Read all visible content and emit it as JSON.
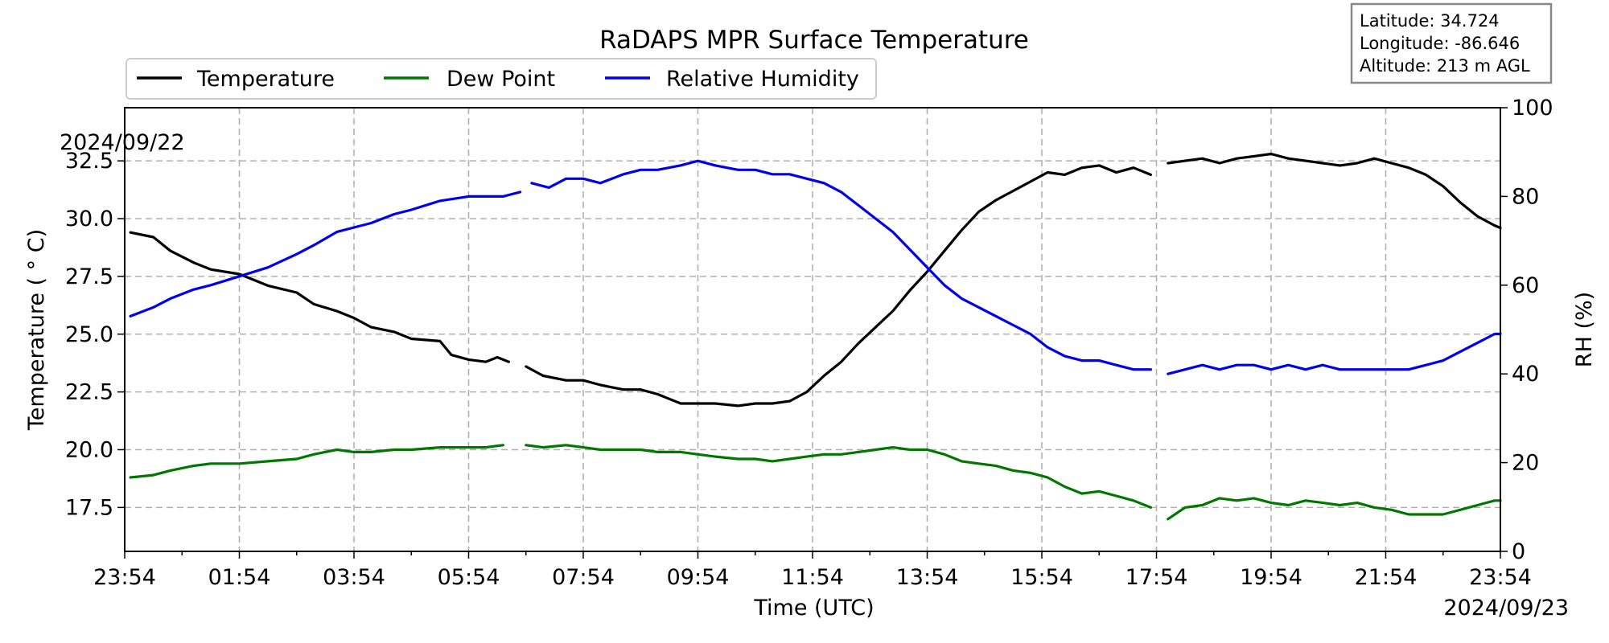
{
  "chart_data": {
    "type": "line",
    "title": "RaDAPS MPR Surface Temperature",
    "xlabel": "Time (UTC)",
    "ylabel_left": "Temperature ( ° C)",
    "ylabel_right": "RH (%)",
    "x_start_label": "2024/09/22",
    "x_end_label": "2024/09/23",
    "x_ticks": [
      "23:54",
      "01:54",
      "03:54",
      "05:54",
      "07:54",
      "09:54",
      "11:54",
      "13:54",
      "15:54",
      "17:54",
      "19:54",
      "21:54",
      "23:54"
    ],
    "y_left_ticks": [
      "17.5",
      "20.0",
      "22.5",
      "25.0",
      "27.5",
      "30.0",
      "32.5"
    ],
    "y_right_ticks": [
      "0",
      "20",
      "40",
      "60",
      "80",
      "100"
    ],
    "ylim_left": [
      15.6,
      34.8
    ],
    "ylim_right": [
      0,
      100
    ],
    "xlim_hours": [
      0,
      24
    ],
    "grid": true,
    "legend_position": "top-left",
    "info_box": [
      "Latitude: 34.724",
      "Longitude: -86.646",
      "Altitude: 213 m AGL"
    ],
    "series": [
      {
        "name": "Temperature",
        "color": "#000000",
        "axis": "left",
        "points": [
          [
            0.1,
            29.4
          ],
          [
            0.5,
            29.2
          ],
          [
            0.8,
            28.6
          ],
          [
            1.2,
            28.1
          ],
          [
            1.5,
            27.8
          ],
          [
            2.0,
            27.6
          ],
          [
            2.5,
            27.1
          ],
          [
            3.0,
            26.8
          ],
          [
            3.3,
            26.3
          ],
          [
            3.7,
            26.0
          ],
          [
            4.0,
            25.7
          ],
          [
            4.3,
            25.3
          ],
          [
            4.7,
            25.1
          ],
          [
            5.0,
            24.8
          ],
          [
            5.5,
            24.7
          ],
          [
            5.7,
            24.1
          ],
          [
            6.0,
            23.9
          ],
          [
            6.3,
            23.8
          ],
          [
            6.5,
            24.0
          ],
          [
            6.7,
            23.8
          ],
          null,
          [
            7.0,
            23.6
          ],
          [
            7.3,
            23.2
          ],
          [
            7.7,
            23.0
          ],
          [
            8.0,
            23.0
          ],
          [
            8.3,
            22.8
          ],
          [
            8.7,
            22.6
          ],
          [
            9.0,
            22.6
          ],
          [
            9.3,
            22.4
          ],
          [
            9.5,
            22.2
          ],
          [
            9.7,
            22.0
          ],
          [
            10.0,
            22.0
          ],
          [
            10.3,
            22.0
          ],
          [
            10.7,
            21.9
          ],
          [
            11.0,
            22.0
          ],
          [
            11.3,
            22.0
          ],
          [
            11.6,
            22.1
          ],
          [
            11.9,
            22.5
          ],
          [
            12.2,
            23.2
          ],
          [
            12.5,
            23.8
          ],
          [
            12.8,
            24.6
          ],
          [
            13.1,
            25.3
          ],
          [
            13.4,
            26.0
          ],
          [
            13.7,
            26.9
          ],
          [
            14.0,
            27.7
          ],
          [
            14.3,
            28.6
          ],
          [
            14.6,
            29.5
          ],
          [
            14.9,
            30.3
          ],
          [
            15.2,
            30.8
          ],
          [
            15.5,
            31.2
          ],
          [
            15.8,
            31.6
          ],
          [
            16.1,
            32.0
          ],
          [
            16.4,
            31.9
          ],
          [
            16.7,
            32.2
          ],
          [
            17.0,
            32.3
          ],
          [
            17.3,
            32.0
          ],
          [
            17.6,
            32.2
          ],
          [
            17.9,
            31.9
          ],
          null,
          [
            18.2,
            32.4
          ],
          [
            18.5,
            32.5
          ],
          [
            18.8,
            32.6
          ],
          [
            19.1,
            32.4
          ],
          [
            19.4,
            32.6
          ],
          [
            19.7,
            32.7
          ],
          [
            20.0,
            32.8
          ],
          [
            20.3,
            32.6
          ],
          [
            20.6,
            32.5
          ],
          [
            20.9,
            32.4
          ],
          [
            21.2,
            32.3
          ],
          [
            21.5,
            32.4
          ],
          [
            21.8,
            32.6
          ],
          [
            22.1,
            32.4
          ],
          [
            22.4,
            32.2
          ],
          [
            22.7,
            31.9
          ],
          [
            23.0,
            31.4
          ],
          [
            23.3,
            30.7
          ],
          [
            23.6,
            30.1
          ],
          [
            23.9,
            29.7
          ],
          [
            24.0,
            29.6
          ]
        ]
      },
      {
        "name": "Dew Point",
        "color": "#007700",
        "axis": "left",
        "points": [
          [
            0.1,
            18.8
          ],
          [
            0.5,
            18.9
          ],
          [
            0.8,
            19.1
          ],
          [
            1.2,
            19.3
          ],
          [
            1.5,
            19.4
          ],
          [
            2.0,
            19.4
          ],
          [
            2.5,
            19.5
          ],
          [
            3.0,
            19.6
          ],
          [
            3.3,
            19.8
          ],
          [
            3.7,
            20.0
          ],
          [
            4.0,
            19.9
          ],
          [
            4.3,
            19.9
          ],
          [
            4.7,
            20.0
          ],
          [
            5.0,
            20.0
          ],
          [
            5.5,
            20.1
          ],
          [
            6.0,
            20.1
          ],
          [
            6.3,
            20.1
          ],
          [
            6.6,
            20.2
          ],
          null,
          [
            7.0,
            20.2
          ],
          [
            7.3,
            20.1
          ],
          [
            7.7,
            20.2
          ],
          [
            8.0,
            20.1
          ],
          [
            8.3,
            20.0
          ],
          [
            8.7,
            20.0
          ],
          [
            9.0,
            20.0
          ],
          [
            9.3,
            19.9
          ],
          [
            9.7,
            19.9
          ],
          [
            10.0,
            19.8
          ],
          [
            10.3,
            19.7
          ],
          [
            10.7,
            19.6
          ],
          [
            11.0,
            19.6
          ],
          [
            11.3,
            19.5
          ],
          [
            11.6,
            19.6
          ],
          [
            11.9,
            19.7
          ],
          [
            12.2,
            19.8
          ],
          [
            12.5,
            19.8
          ],
          [
            12.8,
            19.9
          ],
          [
            13.1,
            20.0
          ],
          [
            13.4,
            20.1
          ],
          [
            13.7,
            20.0
          ],
          [
            14.0,
            20.0
          ],
          [
            14.3,
            19.8
          ],
          [
            14.6,
            19.5
          ],
          [
            14.9,
            19.4
          ],
          [
            15.2,
            19.3
          ],
          [
            15.5,
            19.1
          ],
          [
            15.8,
            19.0
          ],
          [
            16.1,
            18.8
          ],
          [
            16.4,
            18.4
          ],
          [
            16.7,
            18.1
          ],
          [
            17.0,
            18.2
          ],
          [
            17.3,
            18.0
          ],
          [
            17.6,
            17.8
          ],
          [
            17.9,
            17.5
          ],
          null,
          [
            18.2,
            17.0
          ],
          [
            18.5,
            17.5
          ],
          [
            18.8,
            17.6
          ],
          [
            19.1,
            17.9
          ],
          [
            19.4,
            17.8
          ],
          [
            19.7,
            17.9
          ],
          [
            20.0,
            17.7
          ],
          [
            20.3,
            17.6
          ],
          [
            20.6,
            17.8
          ],
          [
            20.9,
            17.7
          ],
          [
            21.2,
            17.6
          ],
          [
            21.5,
            17.7
          ],
          [
            21.8,
            17.5
          ],
          [
            22.1,
            17.4
          ],
          [
            22.4,
            17.2
          ],
          [
            22.7,
            17.2
          ],
          [
            23.0,
            17.2
          ],
          [
            23.3,
            17.4
          ],
          [
            23.6,
            17.6
          ],
          [
            23.9,
            17.8
          ],
          [
            24.0,
            17.8
          ]
        ]
      },
      {
        "name": "Relative Humidity",
        "color": "#0000ee",
        "axis": "right",
        "points": [
          [
            0.1,
            53
          ],
          [
            0.5,
            55
          ],
          [
            0.8,
            57
          ],
          [
            1.2,
            59
          ],
          [
            1.5,
            60
          ],
          [
            2.0,
            62
          ],
          [
            2.5,
            64
          ],
          [
            3.0,
            67
          ],
          [
            3.3,
            69
          ],
          [
            3.7,
            72
          ],
          [
            4.0,
            73
          ],
          [
            4.3,
            74
          ],
          [
            4.7,
            76
          ],
          [
            5.0,
            77
          ],
          [
            5.5,
            79
          ],
          [
            6.0,
            80
          ],
          [
            6.3,
            80
          ],
          [
            6.6,
            80
          ],
          [
            6.9,
            81
          ],
          null,
          [
            7.1,
            83
          ],
          [
            7.4,
            82
          ],
          [
            7.7,
            84
          ],
          [
            8.0,
            84
          ],
          [
            8.3,
            83
          ],
          [
            8.7,
            85
          ],
          [
            9.0,
            86
          ],
          [
            9.3,
            86
          ],
          [
            9.7,
            87
          ],
          [
            10.0,
            88
          ],
          [
            10.3,
            87
          ],
          [
            10.7,
            86
          ],
          [
            11.0,
            86
          ],
          [
            11.3,
            85
          ],
          [
            11.6,
            85
          ],
          [
            11.9,
            84
          ],
          [
            12.2,
            83
          ],
          [
            12.5,
            81
          ],
          [
            12.8,
            78
          ],
          [
            13.1,
            75
          ],
          [
            13.4,
            72
          ],
          [
            13.7,
            68
          ],
          [
            14.0,
            64
          ],
          [
            14.3,
            60
          ],
          [
            14.6,
            57
          ],
          [
            14.9,
            55
          ],
          [
            15.2,
            53
          ],
          [
            15.5,
            51
          ],
          [
            15.8,
            49
          ],
          [
            16.1,
            46
          ],
          [
            16.4,
            44
          ],
          [
            16.7,
            43
          ],
          [
            17.0,
            43
          ],
          [
            17.3,
            42
          ],
          [
            17.6,
            41
          ],
          [
            17.9,
            41
          ],
          null,
          [
            18.2,
            40
          ],
          [
            18.5,
            41
          ],
          [
            18.8,
            42
          ],
          [
            19.1,
            41
          ],
          [
            19.4,
            42
          ],
          [
            19.7,
            42
          ],
          [
            20.0,
            41
          ],
          [
            20.3,
            42
          ],
          [
            20.6,
            41
          ],
          [
            20.9,
            42
          ],
          [
            21.2,
            41
          ],
          [
            21.5,
            41
          ],
          [
            21.8,
            41
          ],
          [
            22.1,
            41
          ],
          [
            22.4,
            41
          ],
          [
            22.7,
            42
          ],
          [
            23.0,
            43
          ],
          [
            23.3,
            45
          ],
          [
            23.6,
            47
          ],
          [
            23.9,
            49
          ],
          [
            24.0,
            49
          ]
        ]
      }
    ]
  }
}
